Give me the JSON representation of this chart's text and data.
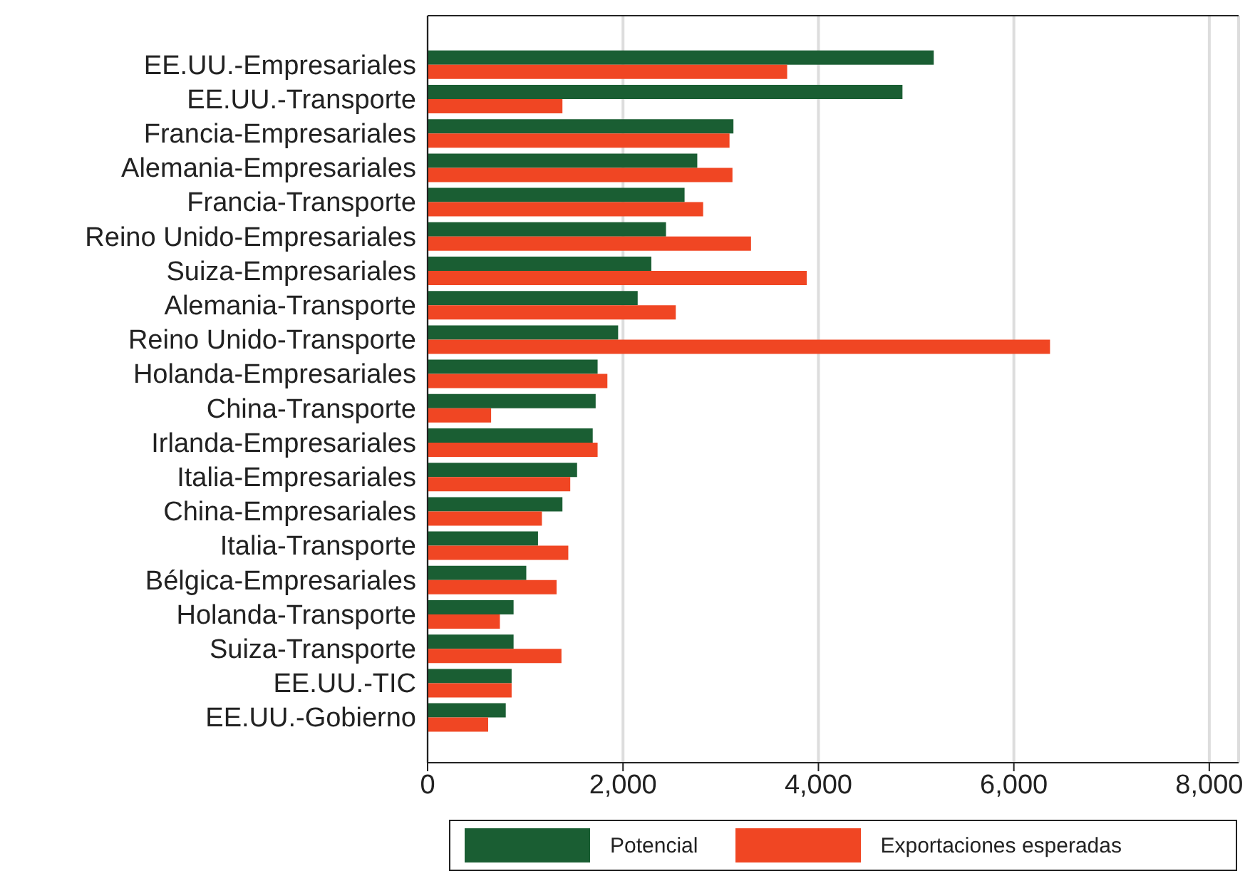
{
  "chart_data": {
    "type": "bar",
    "orientation": "horizontal",
    "categories": [
      "EE.UU.-Empresariales",
      "EE.UU.-Transporte",
      "Francia-Empresariales",
      "Alemania-Empresariales",
      "Francia-Transporte",
      "Reino Unido-Empresariales",
      "Suiza-Empresariales",
      "Alemania-Transporte",
      "Reino Unido-Transporte",
      "Holanda-Empresariales",
      "China-Transporte",
      "Irlanda-Empresariales",
      "Italia-Empresariales",
      "China-Empresariales",
      "Italia-Transporte",
      "Bélgica-Empresariales",
      "Holanda-Transporte",
      "Suiza-Transporte",
      "EE.UU.-TIC",
      "EE.UU.-Gobierno"
    ],
    "series": [
      {
        "name": "Potencial",
        "color": "#1a5e33",
        "values": [
          5180,
          4860,
          3130,
          2760,
          2630,
          2440,
          2290,
          2150,
          1950,
          1740,
          1720,
          1690,
          1530,
          1380,
          1130,
          1010,
          880,
          880,
          860,
          800
        ]
      },
      {
        "name": "Exportaciones esperadas",
        "color": "#f04623",
        "values": [
          3680,
          1380,
          3090,
          3120,
          2820,
          3310,
          3880,
          2540,
          6370,
          1840,
          650,
          1740,
          1460,
          1170,
          1440,
          1320,
          740,
          1370,
          860,
          620
        ]
      }
    ],
    "xlim": [
      0,
      8300
    ],
    "xticks": [
      {
        "value": 0,
        "label": "0"
      },
      {
        "value": 2000,
        "label": "2,000"
      },
      {
        "value": 4000,
        "label": "4,000"
      },
      {
        "value": 6000,
        "label": "6,000"
      },
      {
        "value": 8000,
        "label": "8,000"
      }
    ],
    "grid": "x",
    "legend": "bottom"
  }
}
